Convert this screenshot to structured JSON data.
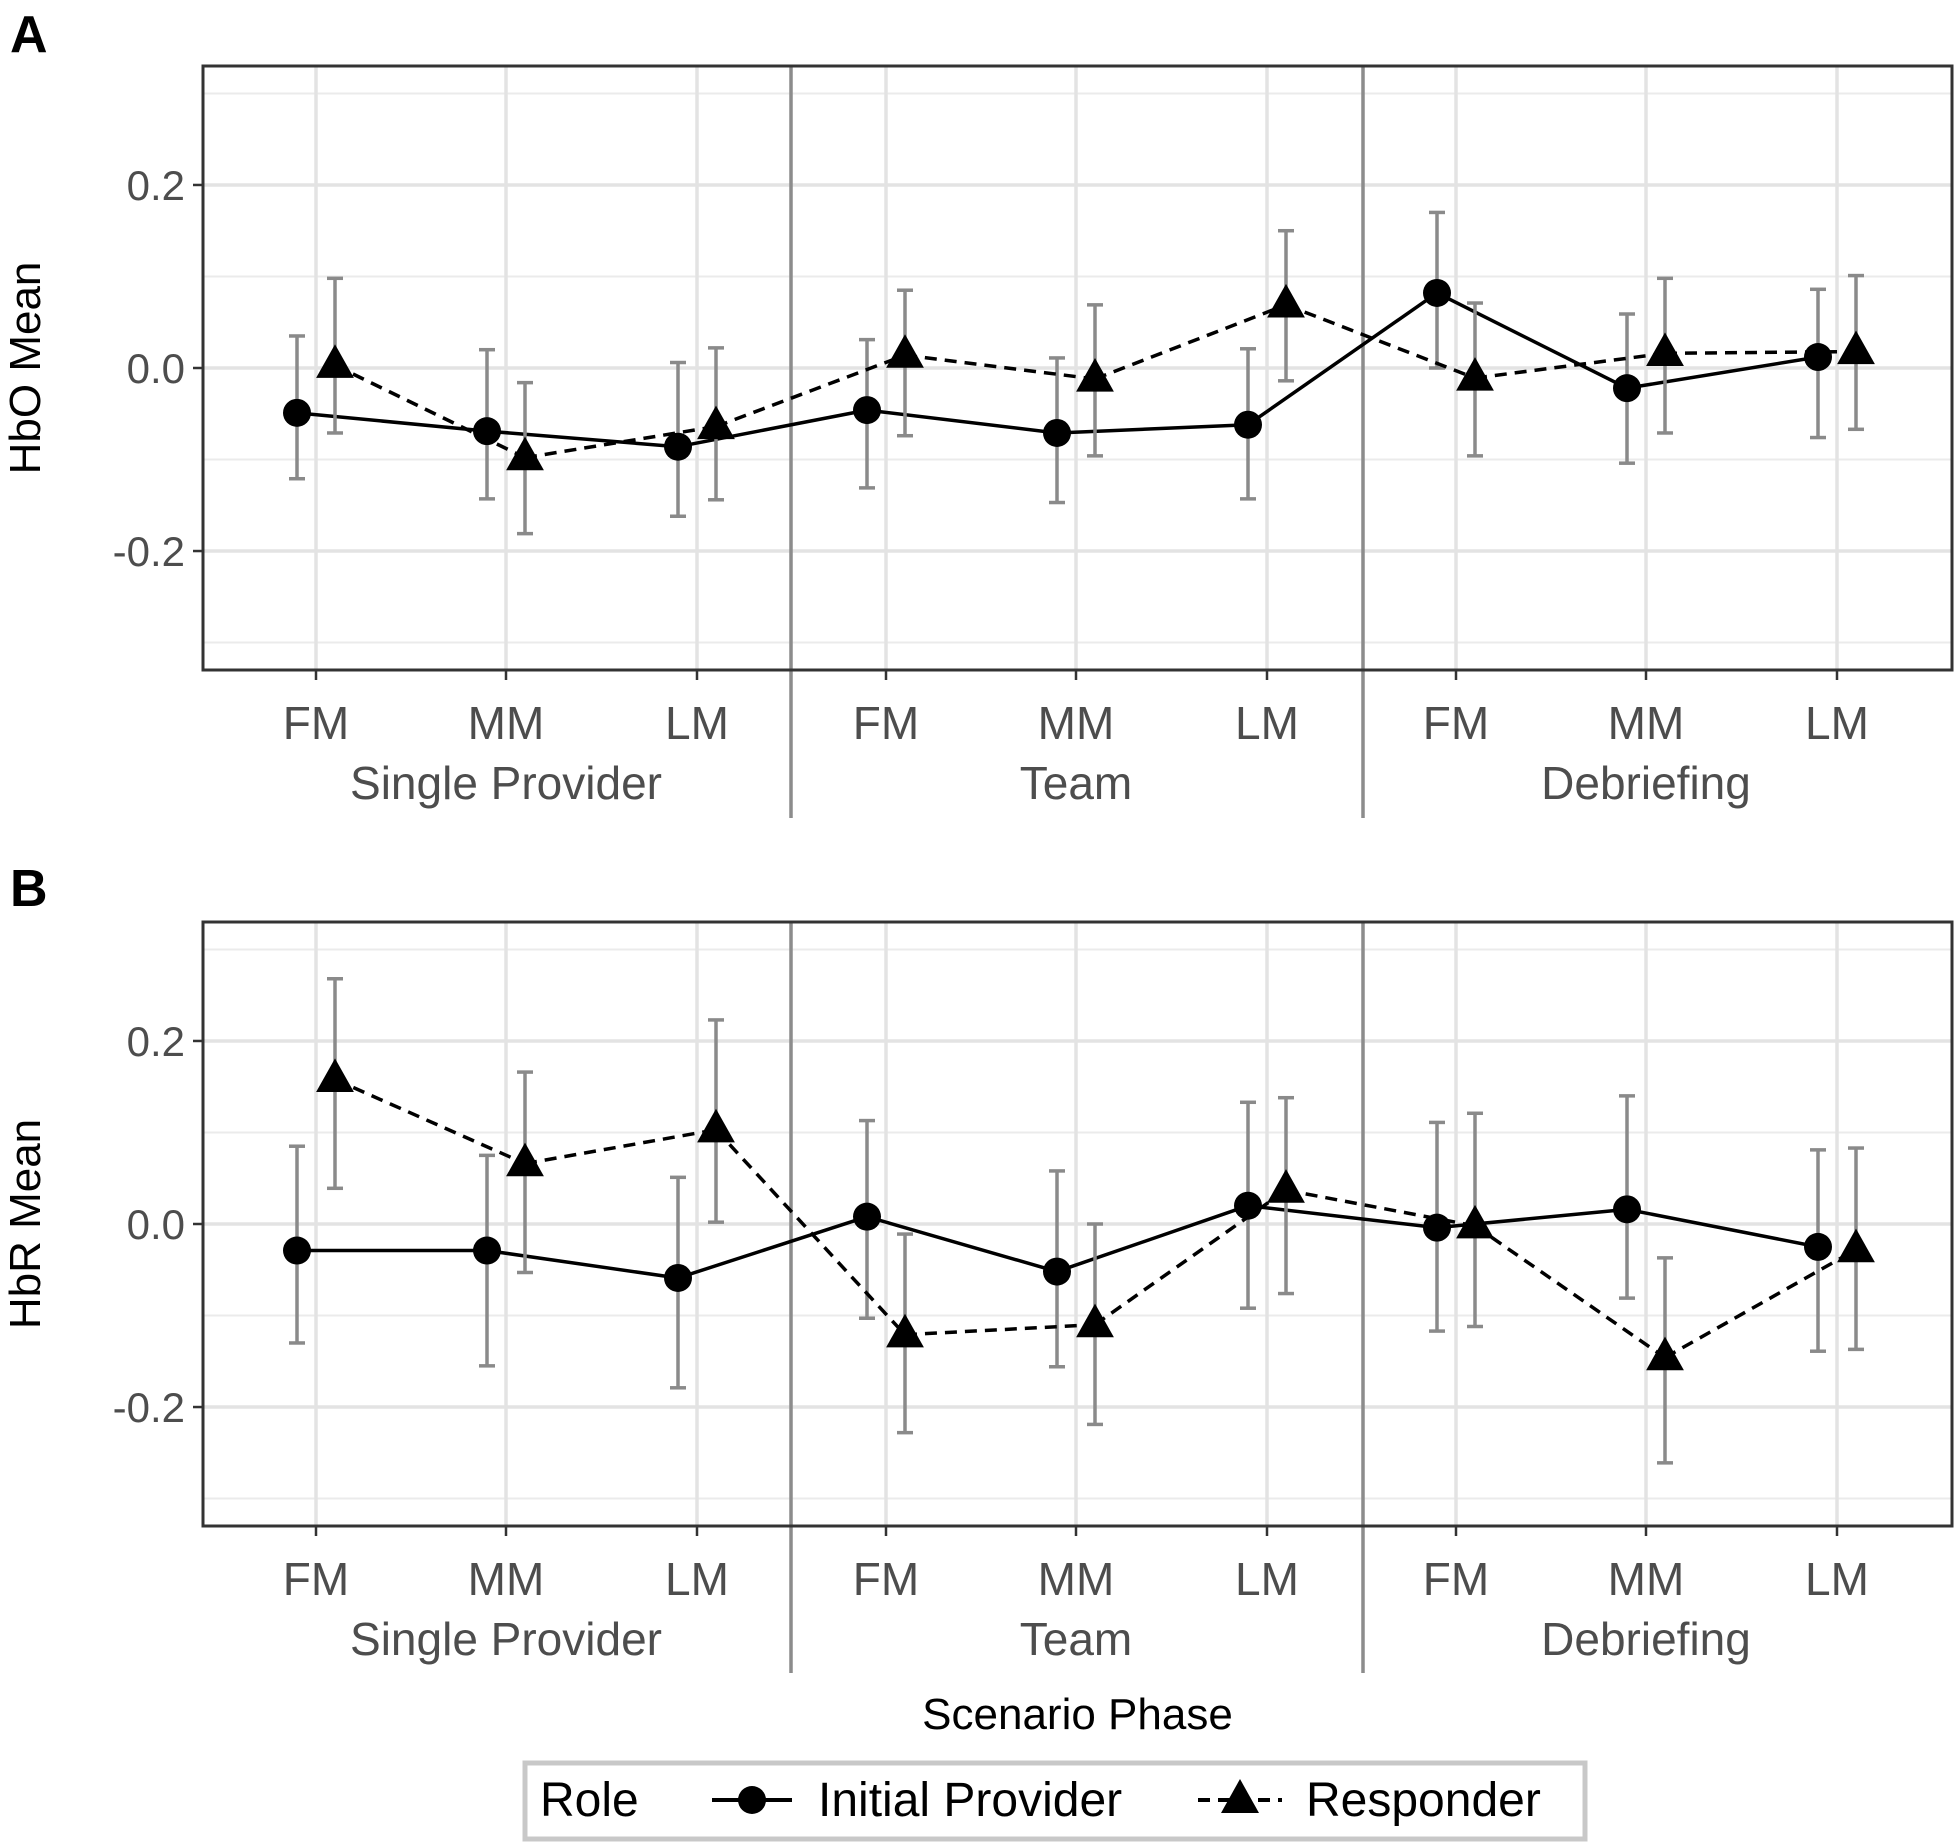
{
  "chart_data": [
    {
      "type": "line",
      "panel_label": "A",
      "ylabel": "HbO Mean",
      "xlabel": "",
      "ylim": [
        -0.33,
        0.33
      ],
      "yticks": [
        -0.2,
        0.0,
        0.2
      ],
      "ytick_labels": [
        "-0.2",
        "0.0",
        "0.2"
      ],
      "groups": [
        "Single Provider",
        "Team",
        "Debriefing"
      ],
      "categories": [
        "FM",
        "MM",
        "LM",
        "FM",
        "MM",
        "LM",
        "FM",
        "MM",
        "LM"
      ],
      "grid": true,
      "series": [
        {
          "name": "Initial Provider",
          "marker": "circle",
          "line": "solid",
          "values": [
            -0.049,
            -0.069,
            -0.086,
            -0.046,
            -0.071,
            -0.062,
            0.082,
            -0.022,
            0.012
          ],
          "err_low": [
            -0.121,
            -0.143,
            -0.162,
            -0.131,
            -0.147,
            -0.143,
            0.0,
            -0.104,
            -0.076
          ],
          "err_high": [
            0.035,
            0.02,
            0.006,
            0.031,
            0.011,
            0.021,
            0.17,
            0.059,
            0.086
          ]
        },
        {
          "name": "Responder",
          "marker": "triangle",
          "line": "dashed",
          "values": [
            0.003,
            -0.098,
            -0.064,
            0.014,
            -0.012,
            0.069,
            -0.011,
            0.016,
            0.018
          ],
          "err_low": [
            -0.071,
            -0.181,
            -0.144,
            -0.074,
            -0.096,
            -0.014,
            -0.096,
            -0.071,
            -0.067
          ],
          "err_high": [
            0.098,
            -0.016,
            0.022,
            0.085,
            0.069,
            0.15,
            0.071,
            0.098,
            0.101
          ]
        }
      ]
    },
    {
      "type": "line",
      "panel_label": "B",
      "ylabel": "HbR Mean",
      "xlabel": "Scenario Phase",
      "ylim": [
        -0.33,
        0.33
      ],
      "yticks": [
        -0.2,
        0.0,
        0.2
      ],
      "ytick_labels": [
        "-0.2",
        "0.0",
        "0.2"
      ],
      "groups": [
        "Single Provider",
        "Team",
        "Debriefing"
      ],
      "categories": [
        "FM",
        "MM",
        "LM",
        "FM",
        "MM",
        "LM",
        "FM",
        "MM",
        "LM"
      ],
      "grid": true,
      "series": [
        {
          "name": "Initial Provider",
          "marker": "circle",
          "line": "solid",
          "values": [
            -0.029,
            -0.029,
            -0.059,
            0.008,
            -0.052,
            0.02,
            -0.004,
            0.016,
            -0.025
          ],
          "err_low": [
            -0.13,
            -0.155,
            -0.179,
            -0.103,
            -0.156,
            -0.092,
            -0.117,
            -0.081,
            -0.139
          ],
          "err_high": [
            0.085,
            0.075,
            0.051,
            0.113,
            0.058,
            0.133,
            0.111,
            0.14,
            0.081
          ]
        },
        {
          "name": "Responder",
          "marker": "triangle",
          "line": "dashed",
          "values": [
            0.158,
            0.066,
            0.103,
            -0.121,
            -0.11,
            0.037,
            -0.002,
            -0.146,
            -0.028
          ],
          "err_low": [
            0.039,
            -0.053,
            0.002,
            -0.228,
            -0.219,
            -0.076,
            -0.112,
            -0.261,
            -0.137
          ],
          "err_high": [
            0.268,
            0.166,
            0.223,
            -0.011,
            0.0,
            0.138,
            0.121,
            -0.037,
            0.083
          ]
        }
      ]
    }
  ],
  "legend": {
    "title": "Role",
    "position": "bottom",
    "entries": [
      "Initial Provider",
      "Responder"
    ]
  }
}
